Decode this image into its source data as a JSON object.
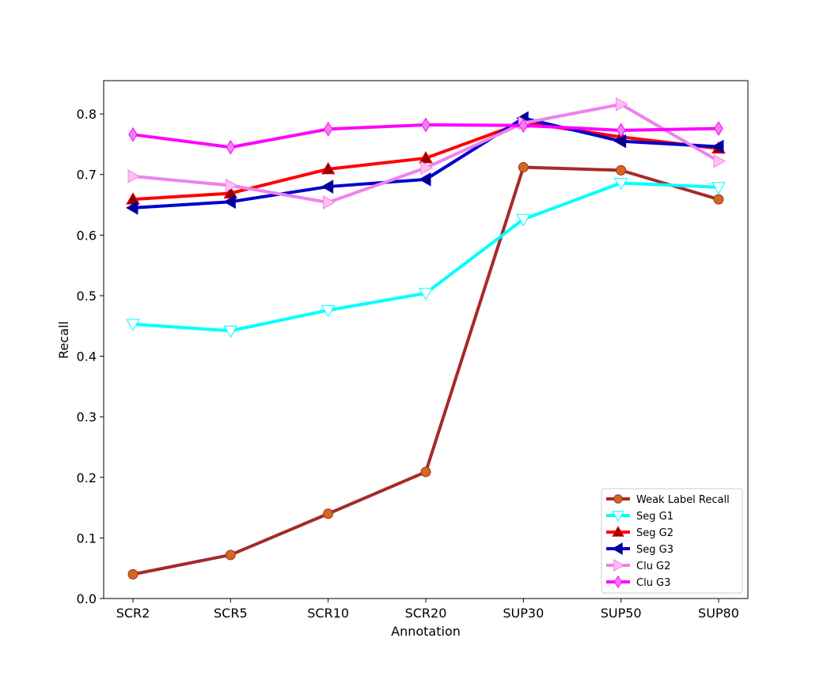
{
  "chart_data": {
    "type": "line",
    "title": "",
    "xlabel": "Annotation",
    "ylabel": "Recall",
    "categories": [
      "SCR2",
      "SCR5",
      "SCR10",
      "SCR20",
      "SUP30",
      "SUP50",
      "SUP80"
    ],
    "ylim": [
      0.0,
      0.855
    ],
    "yticks": [
      "0.0",
      "0.1",
      "0.2",
      "0.3",
      "0.4",
      "0.5",
      "0.6",
      "0.7",
      "0.8"
    ],
    "grid": false,
    "legend_position": "bottom-right",
    "series": [
      {
        "name": "Weak Label Recall",
        "color": "#a52a2a",
        "marker": "circle",
        "marker_fill": "#d2691e",
        "values": [
          0.04,
          0.072,
          0.14,
          0.209,
          0.712,
          0.707,
          0.659
        ]
      },
      {
        "name": "Seg G1",
        "color": "#00ffff",
        "marker": "triangle-down",
        "marker_fill": "#ffffff",
        "values": [
          0.453,
          0.442,
          0.476,
          0.504,
          0.626,
          0.686,
          0.679
        ]
      },
      {
        "name": "Seg G2",
        "color": "#ff0000",
        "marker": "triangle-up",
        "marker_fill": "#8b0000",
        "values": [
          0.659,
          0.669,
          0.709,
          0.727,
          0.786,
          0.762,
          0.743
        ]
      },
      {
        "name": "Seg G3",
        "color": "#0000cd",
        "marker": "triangle-left",
        "marker_fill": "#00008b",
        "values": [
          0.645,
          0.655,
          0.68,
          0.692,
          0.793,
          0.755,
          0.746
        ]
      },
      {
        "name": "Clu G2",
        "color": "#ee82ee",
        "marker": "triangle-right",
        "marker_fill": "#ffc0f0",
        "values": [
          0.697,
          0.682,
          0.654,
          0.711,
          0.785,
          0.816,
          0.722
        ]
      },
      {
        "name": "Clu G3",
        "color": "#ff00ff",
        "marker": "diamond",
        "marker_fill": "#ee82ee",
        "values": [
          0.766,
          0.745,
          0.775,
          0.782,
          0.781,
          0.773,
          0.776
        ]
      }
    ]
  }
}
